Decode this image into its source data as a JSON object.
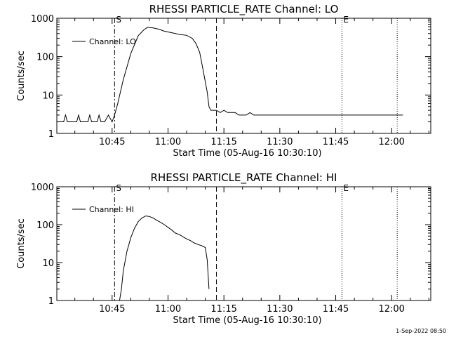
{
  "footer_stamp": "1-Sep-2022 08:50",
  "chart_data": [
    {
      "type": "line",
      "title": "RHESSI PARTICLE_RATE Channel: LO",
      "xlabel": "Start Time (05-Aug-16 10:30:10)",
      "ylabel": "Counts/sec",
      "y_scale": "log",
      "ylim": [
        1,
        1000
      ],
      "xlim": [
        "10:30:10",
        "12:10:30"
      ],
      "x_ticks": [
        "10:45",
        "11:00",
        "11:15",
        "11:30",
        "11:45",
        "12:00"
      ],
      "y_ticks": [
        "1",
        "10",
        "100",
        "1000"
      ],
      "legend": {
        "position": "top-left",
        "entry": "Channel: LO"
      },
      "markers": [
        {
          "label": "S",
          "time": "10:45:40",
          "style": "dash-dot"
        },
        {
          "label": "",
          "time": "11:13:00",
          "style": "dashed"
        },
        {
          "label": "E",
          "time": "11:46:40",
          "style": "dotted"
        },
        {
          "label": "",
          "time": "12:01:30",
          "style": "dotted"
        }
      ],
      "series": [
        {
          "name": "Channel: LO",
          "x": [
            "10:30:10",
            "10:32:00",
            "10:32:30",
            "10:33:00",
            "10:35:30",
            "10:36:00",
            "10:36:30",
            "10:38:30",
            "10:39:00",
            "10:39:30",
            "10:41:00",
            "10:41:30",
            "10:42:00",
            "10:43:00",
            "10:44:00",
            "10:45:00",
            "10:45:40",
            "10:46:30",
            "10:48:00",
            "10:50:00",
            "10:52:00",
            "10:53:30",
            "10:54:30",
            "10:56:00",
            "10:57:30",
            "10:59:00",
            "11:01:00",
            "11:03:00",
            "11:05:00",
            "11:06:30",
            "11:07:30",
            "11:08:30",
            "11:09:30",
            "11:10:30",
            "11:11:00",
            "11:11:30",
            "11:12:00",
            "11:13:00",
            "11:14:00",
            "11:15:00",
            "11:16:00",
            "11:17:00",
            "11:18:00",
            "11:19:00",
            "11:20:00",
            "11:21:00",
            "11:22:00",
            "11:23:00",
            "11:24:00",
            "11:25:00",
            "11:26:00",
            "11:27:00",
            "11:28:00",
            "11:29:00",
            "11:30:00",
            "11:31:00",
            "11:32:00",
            "11:33:00",
            "11:34:00",
            "11:35:00",
            "11:36:00",
            "11:37:00",
            "11:38:00",
            "11:39:00",
            "11:40:00",
            "11:41:00",
            "11:42:00",
            "11:43:00",
            "11:44:00",
            "11:45:00",
            "11:46:00",
            "11:47:00",
            "11:48:00",
            "11:49:00",
            "11:50:00",
            "11:51:00",
            "11:52:00",
            "11:53:00",
            "11:54:00",
            "11:55:00",
            "11:56:00",
            "11:57:00",
            "11:58:00",
            "11:59:00",
            "12:00:00",
            "12:01:00",
            "12:02:00",
            "12:03:00"
          ],
          "y": [
            2,
            2,
            3,
            2,
            2,
            3,
            2,
            2,
            3,
            2,
            2,
            3,
            2,
            2,
            3,
            2,
            3,
            6,
            25,
            120,
            350,
            500,
            580,
            560,
            520,
            460,
            420,
            380,
            360,
            300,
            220,
            130,
            40,
            12,
            5,
            4,
            4,
            4,
            3.5,
            4,
            3.5,
            3.5,
            3.5,
            3,
            3,
            3,
            3.5,
            3,
            3,
            3,
            3,
            3,
            3,
            3,
            3,
            3,
            3,
            3,
            3,
            3,
            3,
            3,
            3,
            3,
            3,
            3,
            3,
            3,
            3,
            3,
            3,
            3,
            3,
            3,
            3,
            3,
            3,
            3,
            3,
            3,
            3,
            3,
            3,
            3,
            3,
            3,
            3,
            3
          ]
        }
      ]
    },
    {
      "type": "line",
      "title": "RHESSI PARTICLE_RATE Channel: HI",
      "xlabel": "Start Time (05-Aug-16 10:30:10)",
      "ylabel": "Counts/sec",
      "y_scale": "log",
      "ylim": [
        1,
        1000
      ],
      "xlim": [
        "10:30:10",
        "12:10:30"
      ],
      "x_ticks": [
        "10:45",
        "11:00",
        "11:15",
        "11:30",
        "11:45",
        "12:00"
      ],
      "y_ticks": [
        "1",
        "10",
        "100",
        "1000"
      ],
      "legend": {
        "position": "top-left",
        "entry": "Channel: HI"
      },
      "markers": [
        {
          "label": "S",
          "time": "10:45:40",
          "style": "dash-dot"
        },
        {
          "label": "",
          "time": "11:13:00",
          "style": "dashed"
        },
        {
          "label": "E",
          "time": "11:46:40",
          "style": "dotted"
        },
        {
          "label": "",
          "time": "12:01:30",
          "style": "dotted"
        }
      ],
      "series": [
        {
          "name": "Channel: HI",
          "x": [
            "10:47:00",
            "10:47:30",
            "10:48:00",
            "10:49:00",
            "10:50:00",
            "10:51:00",
            "10:52:00",
            "10:53:00",
            "10:54:00",
            "10:55:00",
            "10:56:00",
            "10:57:00",
            "10:58:00",
            "10:59:00",
            "11:00:00",
            "11:01:00",
            "11:02:00",
            "11:03:00",
            "11:04:00",
            "11:05:00",
            "11:06:00",
            "11:07:00",
            "11:08:00",
            "11:09:00",
            "11:10:00",
            "11:10:30",
            "11:11:00"
          ],
          "y": [
            1,
            2,
            6,
            20,
            45,
            80,
            120,
            150,
            170,
            165,
            150,
            130,
            115,
            100,
            85,
            72,
            60,
            55,
            48,
            42,
            38,
            33,
            30,
            28,
            25,
            12,
            2
          ]
        }
      ]
    }
  ]
}
